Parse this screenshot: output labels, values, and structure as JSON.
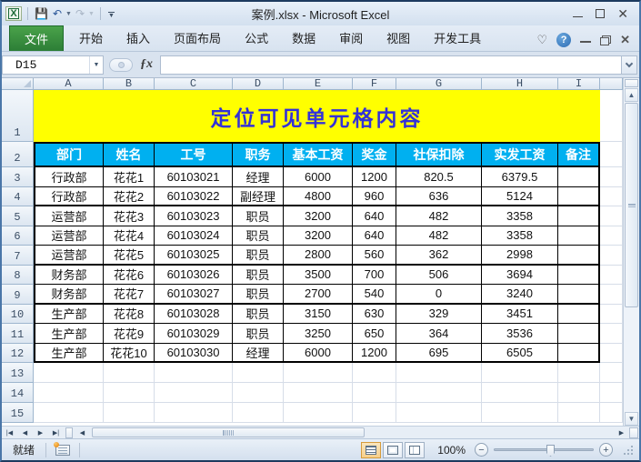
{
  "window": {
    "title": "案例.xlsx - Microsoft Excel",
    "controls": {
      "minimize": "minimize",
      "maximize": "maximize",
      "close": "close"
    }
  },
  "qat": {
    "buttons": [
      "excel-logo",
      "save",
      "undo",
      "redo",
      "customize-quick-access-toolbar"
    ],
    "undo_glyph": "↶",
    "redo_glyph": "↷"
  },
  "ribbon": {
    "file_tab": "文件",
    "tabs": [
      "开始",
      "插入",
      "页面布局",
      "公式",
      "数据",
      "审阅",
      "视图",
      "开发工具"
    ],
    "right_icons": [
      "heart",
      "help",
      "minimize",
      "restore",
      "close"
    ],
    "help_glyph": "?"
  },
  "formula_bar": {
    "name_box": "D15",
    "fx_label": "ƒx",
    "formula_value": ""
  },
  "sheet": {
    "column_headers": [
      "A",
      "B",
      "C",
      "D",
      "E",
      "F",
      "G",
      "H",
      "I"
    ],
    "row_headers": [
      "1",
      "2",
      "3",
      "4",
      "5",
      "6",
      "7",
      "8",
      "9",
      "10",
      "11",
      "12",
      "13",
      "14",
      "15"
    ],
    "title_row": {
      "row": 1,
      "text": "定位可见单元格内容"
    },
    "header_row": {
      "row": 2,
      "cells": [
        "部门",
        "姓名",
        "工号",
        "职务",
        "基本工资",
        "奖金",
        "社保扣除",
        "实发工资",
        "备注"
      ]
    },
    "data_rows": [
      {
        "row": 3,
        "cells": [
          "行政部",
          "花花1",
          "60103021",
          "经理",
          "6000",
          "1200",
          "820.5",
          "6379.5",
          ""
        ]
      },
      {
        "row": 4,
        "cells": [
          "行政部",
          "花花2",
          "60103022",
          "副经理",
          "4800",
          "960",
          "636",
          "5124",
          ""
        ]
      },
      {
        "row": 5,
        "cells": [
          "运营部",
          "花花3",
          "60103023",
          "职员",
          "3200",
          "640",
          "482",
          "3358",
          ""
        ]
      },
      {
        "row": 6,
        "cells": [
          "运营部",
          "花花4",
          "60103024",
          "职员",
          "3200",
          "640",
          "482",
          "3358",
          ""
        ]
      },
      {
        "row": 7,
        "cells": [
          "运营部",
          "花花5",
          "60103025",
          "职员",
          "2800",
          "560",
          "362",
          "2998",
          ""
        ]
      },
      {
        "row": 8,
        "cells": [
          "财务部",
          "花花6",
          "60103026",
          "职员",
          "3500",
          "700",
          "506",
          "3694",
          ""
        ]
      },
      {
        "row": 9,
        "cells": [
          "财务部",
          "花花7",
          "60103027",
          "职员",
          "2700",
          "540",
          "0",
          "3240",
          ""
        ]
      },
      {
        "row": 10,
        "cells": [
          "生产部",
          "花花8",
          "60103028",
          "职员",
          "3150",
          "630",
          "329",
          "3451",
          ""
        ]
      },
      {
        "row": 11,
        "cells": [
          "生产部",
          "花花9",
          "60103029",
          "职员",
          "3250",
          "650",
          "364",
          "3536",
          ""
        ]
      },
      {
        "row": 12,
        "cells": [
          "生产部",
          "花花10",
          "60103030",
          "经理",
          "6000",
          "1200",
          "695",
          "6505",
          ""
        ]
      }
    ],
    "group_end_rows": [
      4,
      7,
      9,
      12
    ]
  },
  "colors": {
    "table_header_bg": "#00b0f0",
    "title_bg": "#ffff00",
    "title_text": "#3331d8",
    "file_tab_green": "#2c7e36"
  },
  "status_bar": {
    "ready": "就绪",
    "zoom_level": "100%"
  }
}
